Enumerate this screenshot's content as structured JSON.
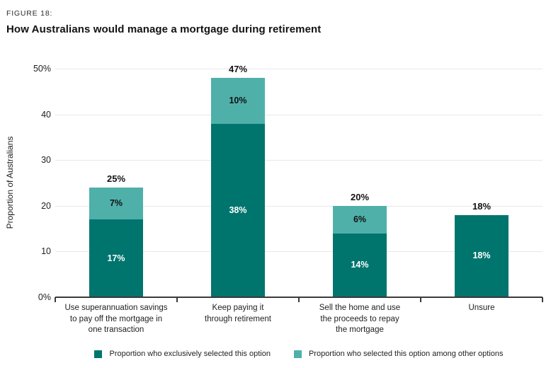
{
  "figure_label": "FIGURE 18:",
  "title": "How Australians would manage a mortgage during retirement",
  "colors": {
    "exclusive": "#00756E",
    "among_other": "#4FB0AA",
    "gridline": "#E8E8E8",
    "axis": "#3A3A3A",
    "dark_segment_label": "#FFFFFF",
    "light_segment_label": "#121212"
  },
  "chart_data": {
    "type": "bar",
    "stacked": true,
    "title": "How Australians would manage a mortgage during retirement",
    "ylabel": "Proportion of Australians",
    "xlabel": "",
    "ylim": [
      0,
      50
    ],
    "grid": true,
    "legend_position": "bottom",
    "yticks": [
      {
        "value": 0,
        "label": "0%"
      },
      {
        "value": 10,
        "label": "10"
      },
      {
        "value": 20,
        "label": "20"
      },
      {
        "value": 30,
        "label": "30"
      },
      {
        "value": 40,
        "label": "40"
      },
      {
        "value": 50,
        "label": "50%"
      }
    ],
    "categories": [
      "Use superannuation savings to pay off the mortgage in one transaction",
      "Keep paying it through retirement",
      "Sell the home and use the proceeds to repay the mortgage",
      "Unsure"
    ],
    "category_lines": [
      [
        "Use superannuation savings",
        "to pay off the mortgage in",
        "one transaction"
      ],
      [
        "Keep paying it",
        "through retirement"
      ],
      [
        "Sell the home and use",
        "the proceeds to repay",
        "the mortgage"
      ],
      [
        "Unsure"
      ]
    ],
    "series": [
      {
        "name": "Proportion who exclusively selected this option",
        "color": "#00756E",
        "values": [
          17,
          38,
          14,
          18
        ],
        "labels": [
          "17%",
          "38%",
          "14%",
          "18%"
        ]
      },
      {
        "name": "Proportion who selected this option among other options",
        "color": "#4FB0AA",
        "values": [
          7,
          10,
          6,
          0
        ],
        "labels": [
          "7%",
          "10%",
          "6%",
          ""
        ]
      }
    ],
    "totals": [
      25,
      47,
      20,
      18
    ],
    "total_labels": [
      "25%",
      "47%",
      "20%",
      "18%"
    ]
  },
  "legend": [
    {
      "label": "Proportion who exclusively selected this option",
      "color": "#00756E"
    },
    {
      "label": "Proportion who selected this option among other options",
      "color": "#4FB0AA"
    }
  ]
}
